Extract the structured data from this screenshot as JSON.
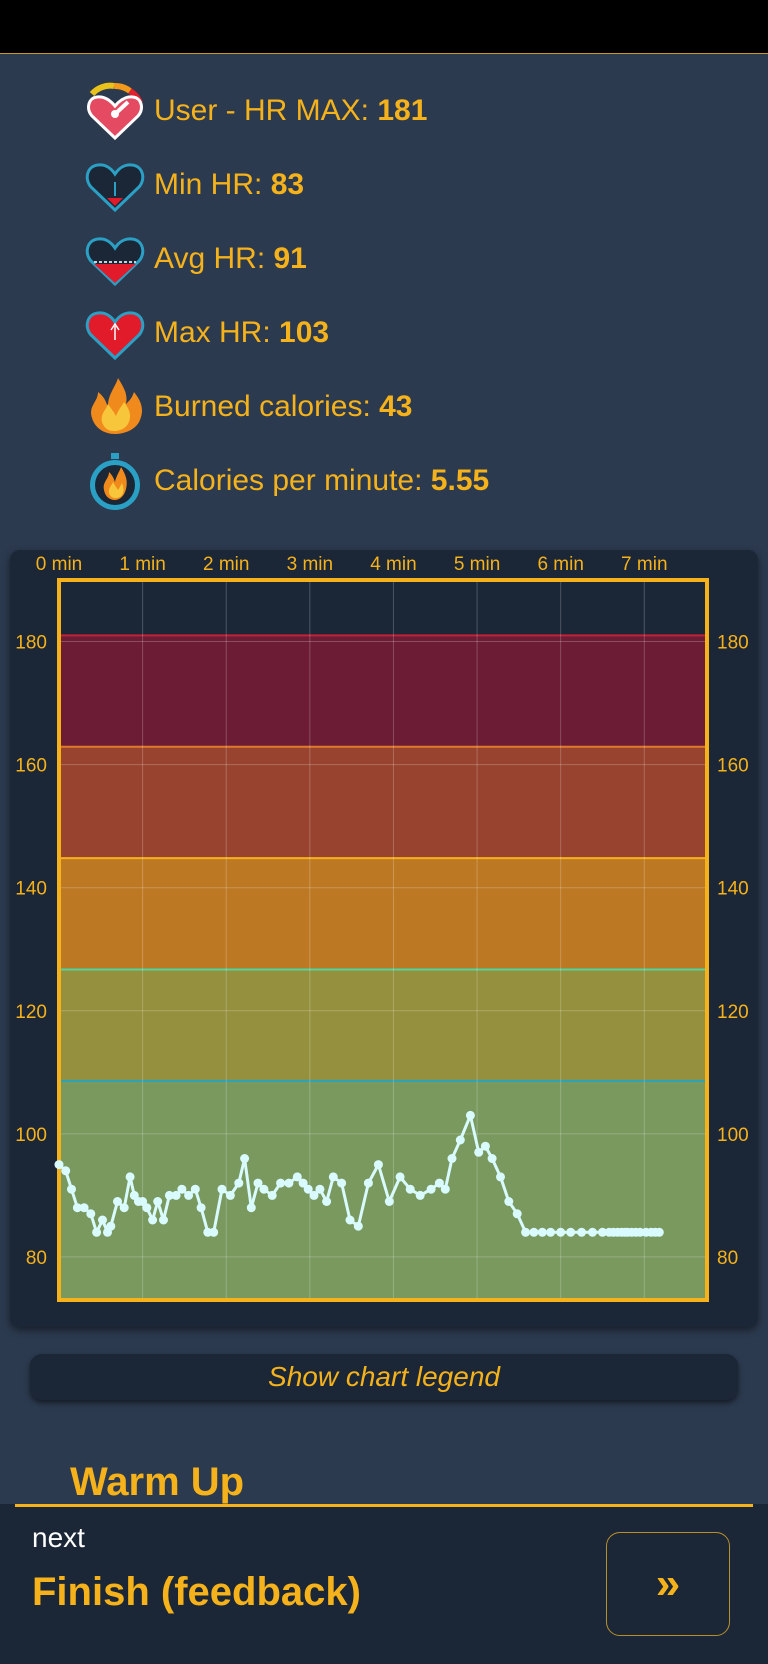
{
  "stats": {
    "user_hr_max": {
      "label": "User - HR MAX: ",
      "value": "181",
      "icon": "heart-gauge-icon"
    },
    "min_hr": {
      "label": "Min HR: ",
      "value": "83",
      "icon": "heart-min-icon"
    },
    "avg_hr": {
      "label": "Avg HR: ",
      "value": "91",
      "icon": "heart-avg-icon"
    },
    "max_hr": {
      "label": "Max HR: ",
      "value": "103",
      "icon": "heart-max-icon"
    },
    "burned_calories": {
      "label": "Burned calories: ",
      "value": "43",
      "icon": "flame-icon"
    },
    "calories_per_minute": {
      "label": "Calories per minute: ",
      "value": "5.55",
      "icon": "stopwatch-flame-icon"
    }
  },
  "legend_button_label": "Show chart legend",
  "section_title": "Warm Up",
  "footer": {
    "next_label": "next",
    "next_title": "Finish (feedback)",
    "next_button_label": "»"
  },
  "colors": {
    "accent": "#f5b21a",
    "background": "#2c3a4f",
    "panel": "#1b2637",
    "series": "#d9fbff"
  },
  "chart_data": {
    "type": "line",
    "x_tick_labels": [
      "0 min",
      "1 min",
      "2 min",
      "3 min",
      "4 min",
      "5 min",
      "6 min",
      "7 min"
    ],
    "x_ticks": [
      0,
      1,
      2,
      3,
      4,
      5,
      6,
      7
    ],
    "xlim": [
      0,
      7.75
    ],
    "y_tick_labels": [
      "80",
      "100",
      "120",
      "140",
      "160",
      "180"
    ],
    "y_ticks": [
      80,
      100,
      120,
      140,
      160,
      180
    ],
    "ylim": [
      73,
      190
    ],
    "grid": true,
    "zones": [
      {
        "from": 73,
        "to": 108.6,
        "color": "#79995f"
      },
      {
        "from": 108.6,
        "to": 126.7,
        "color": "#94903e"
      },
      {
        "from": 126.7,
        "to": 144.8,
        "color": "#bd7824"
      },
      {
        "from": 144.8,
        "to": 162.9,
        "color": "#98432f"
      },
      {
        "from": 162.9,
        "to": 181,
        "color": "#6c1c34"
      }
    ],
    "series": [
      {
        "color": "#d9fbff",
        "x": [
          0,
          0.08,
          0.15,
          0.22,
          0.3,
          0.38,
          0.45,
          0.52,
          0.58,
          0.62,
          0.7,
          0.78,
          0.85,
          0.9,
          0.95,
          1.0,
          1.05,
          1.12,
          1.18,
          1.25,
          1.32,
          1.4,
          1.47,
          1.55,
          1.63,
          1.7,
          1.78,
          1.85,
          1.95,
          2.05,
          2.15,
          2.22,
          2.3,
          2.38,
          2.45,
          2.55,
          2.65,
          2.75,
          2.85,
          2.92,
          2.98,
          3.05,
          3.12,
          3.2,
          3.28,
          3.38,
          3.48,
          3.58,
          3.7,
          3.82,
          3.95,
          4.08,
          4.2,
          4.32,
          4.45,
          4.55,
          4.62,
          4.7,
          4.8,
          4.92,
          5.02,
          5.1,
          5.18,
          5.28,
          5.38,
          5.48,
          5.58,
          5.68,
          5.78,
          5.88,
          6.0,
          6.12,
          6.25,
          6.38,
          6.5,
          6.58,
          6.63,
          6.68,
          6.73,
          6.77,
          6.8,
          6.85,
          6.9,
          6.95,
          7.02,
          7.08,
          7.13,
          7.18
        ],
        "y": [
          95,
          94,
          91,
          88,
          88,
          87,
          84,
          86,
          84,
          85,
          89,
          88,
          93,
          90,
          89,
          89,
          88,
          86,
          89,
          86,
          90,
          90,
          91,
          90,
          91,
          88,
          84,
          84,
          91,
          90,
          92,
          96,
          88,
          92,
          91,
          90,
          92,
          92,
          93,
          92,
          91,
          90,
          91,
          89,
          93,
          92,
          86,
          85,
          92,
          95,
          89,
          93,
          91,
          90,
          91,
          92,
          91,
          96,
          99,
          103,
          97,
          98,
          96,
          93,
          89,
          87,
          84,
          84,
          84,
          84,
          84,
          84,
          84,
          84,
          84,
          84,
          84,
          84,
          84,
          84,
          84,
          84,
          84,
          84,
          84,
          84,
          84,
          84
        ]
      }
    ]
  }
}
